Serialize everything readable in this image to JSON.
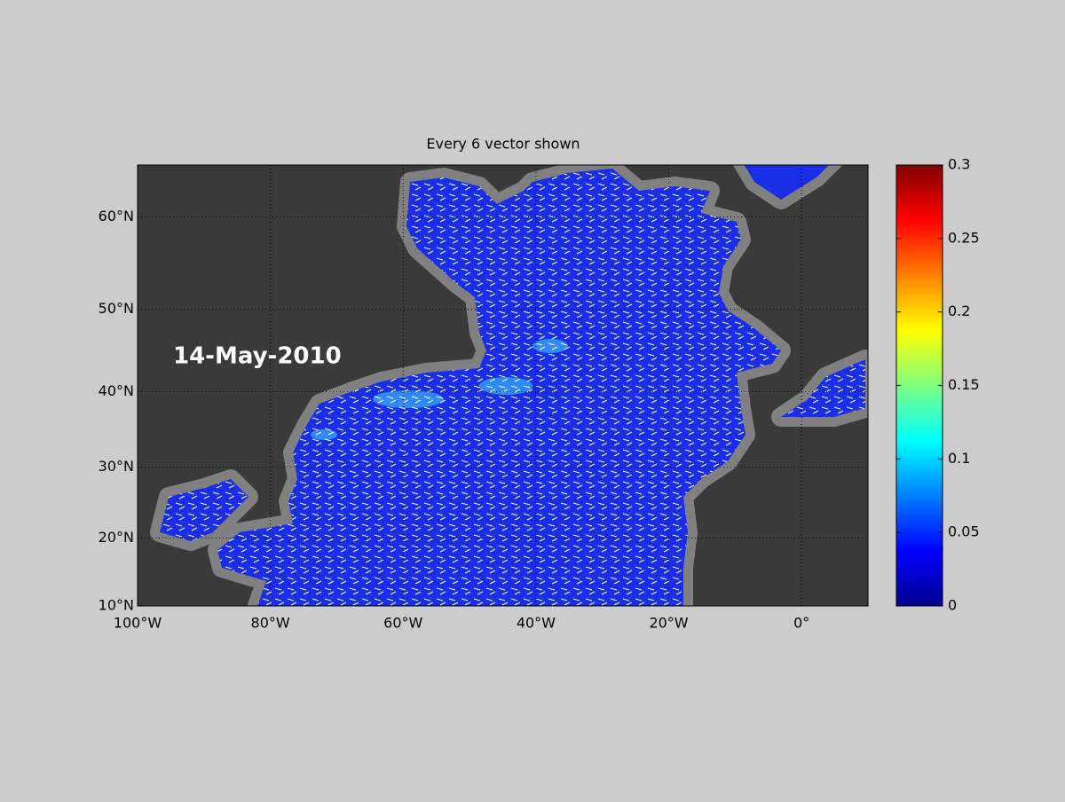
{
  "title": "Every 6 vector shown",
  "date_label": "14-May-2010",
  "map": {
    "projection": "miller",
    "grid": true,
    "xlim": [
      -100,
      10
    ],
    "ylim": [
      10,
      65
    ],
    "xticks": [
      {
        "value": -100,
        "label": "100°W"
      },
      {
        "value": -80,
        "label": "80°W"
      },
      {
        "value": -60,
        "label": "60°W"
      },
      {
        "value": -40,
        "label": "40°W"
      },
      {
        "value": -20,
        "label": "20°W"
      },
      {
        "value": 0,
        "label": "0°"
      }
    ],
    "yticks": [
      {
        "value": 10,
        "label": "10°N"
      },
      {
        "value": 20,
        "label": "20°N"
      },
      {
        "value": 30,
        "label": "30°N"
      },
      {
        "value": 40,
        "label": "40°N"
      },
      {
        "value": 50,
        "label": "50°N"
      },
      {
        "value": 60,
        "label": "60°N"
      }
    ]
  },
  "colorbar": {
    "colormap": "jet",
    "lim": [
      0,
      0.3
    ],
    "ticks": [
      0,
      0.05,
      0.1,
      0.15,
      0.2,
      0.25,
      0.3
    ]
  }
}
